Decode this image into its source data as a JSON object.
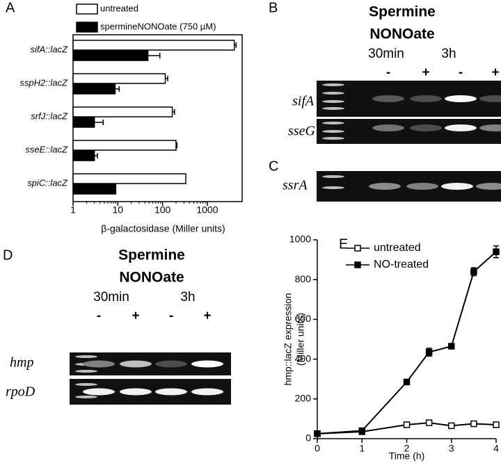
{
  "chart_data": [
    {
      "type": "hbar",
      "panel": "A",
      "log_x": true,
      "categories": [
        "sifA::lacZ",
        "sspH2::lacZ",
        "srfJ::lacZ",
        "sseE::lacZ",
        "spiC::lacZ"
      ],
      "series": [
        {
          "name": "untreated",
          "color": "#ffffff",
          "values": [
            4000,
            115,
            165,
            200,
            330
          ],
          "errors": [
            400,
            15,
            20,
            10,
            null
          ]
        },
        {
          "name": "spermineNONOate (750 µM)",
          "color": "#000000",
          "values": [
            47,
            8.7,
            3,
            3,
            9
          ],
          "errors": [
            40,
            2,
            1.7,
            0.5,
            null
          ]
        }
      ],
      "xlim": [
        1,
        6000
      ],
      "xticks": [
        1,
        10,
        100,
        1000
      ],
      "xlabel": "β-galactosidase (Miller units)"
    },
    {
      "type": "line",
      "panel": "E",
      "x": [
        0,
        1,
        2,
        2.5,
        3,
        3.5,
        4
      ],
      "series": [
        {
          "name": "untreated",
          "color": "#000000",
          "marker": "open-square",
          "values": [
            25,
            35,
            70,
            80,
            65,
            75,
            70
          ],
          "errors": [
            null,
            null,
            null,
            null,
            null,
            null,
            null
          ]
        },
        {
          "name": "NO-treated",
          "color": "#000000",
          "marker": "square",
          "values": [
            25,
            40,
            285,
            435,
            465,
            840,
            940
          ],
          "errors": [
            null,
            null,
            null,
            20,
            null,
            20,
            30
          ]
        }
      ],
      "xlim": [
        0,
        4
      ],
      "xticks": [
        0,
        1,
        2,
        3,
        4
      ],
      "ylim": [
        0,
        1000
      ],
      "yticks": [
        0,
        200,
        400,
        600,
        800,
        1000
      ],
      "xlabel": "Time (h)",
      "ylabel": [
        "hmp::lacZ expression",
        "(Miller units)"
      ],
      "legend": "top-left"
    }
  ],
  "gels": {
    "B": {
      "panel": "B",
      "title": [
        "Spermine",
        "NONOate"
      ],
      "timepoints": [
        "30min",
        "3h"
      ],
      "treatment": [
        "-",
        "+",
        "-",
        "+"
      ],
      "rows": [
        "sifA",
        "sseG"
      ]
    },
    "C": {
      "panel": "C",
      "rows": [
        "ssrA"
      ]
    },
    "D": {
      "panel": "D",
      "title": [
        "Spermine",
        "NONOate"
      ],
      "timepoints": [
        "30min",
        "3h"
      ],
      "treatment": [
        "-",
        "+",
        "-",
        "+"
      ],
      "rows": [
        "hmp",
        "rpoD"
      ]
    }
  }
}
